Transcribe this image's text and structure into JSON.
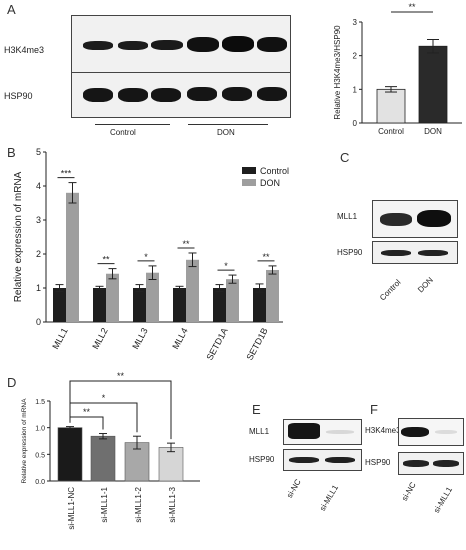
{
  "panel_letters": {
    "a": "A",
    "b": "B",
    "c": "C",
    "d": "D",
    "e": "E",
    "f": "F"
  },
  "blot_a": {
    "protein_top": "H3K4me3",
    "protein_bottom": "HSP90",
    "group_control": "Control",
    "group_don": "DON"
  },
  "blot_c": {
    "protein_top": "MLL1",
    "protein_bottom": "HSP90",
    "lane_1": "Control",
    "lane_2": "DON"
  },
  "blot_e": {
    "protein_top": "MLL1",
    "protein_bottom": "HSP90",
    "lane_1": "si-NC",
    "lane_2": "si-MLL1"
  },
  "blot_f": {
    "protein_top": "H3K4me3",
    "protein_bottom": "HSP90",
    "lane_1": "si-NC",
    "lane_2": "si-MLL1"
  },
  "chart_data": [
    {
      "panel": "A",
      "type": "bar",
      "categories": [
        "Control",
        "DON"
      ],
      "values": [
        1.0,
        2.28
      ],
      "errors": [
        0.08,
        0.2
      ],
      "colors": [
        "#e2e2e2",
        "#2a2a2a"
      ],
      "ylabel": "Relative H3K4me3/HSP90",
      "ylim": [
        0,
        3
      ],
      "yticks": [
        "0",
        "1",
        "2",
        "3"
      ],
      "significance": [
        {
          "from": 0,
          "to": 1,
          "label": "**"
        }
      ]
    },
    {
      "panel": "B",
      "type": "bar",
      "categories": [
        "MLL1",
        "MLL2",
        "MLL3",
        "MLL4",
        "SETD1A",
        "SETD1B"
      ],
      "series": [
        {
          "name": "Control",
          "color": "#1e1e1e",
          "values": [
            1.0,
            1.0,
            1.0,
            1.0,
            1.0,
            1.0
          ],
          "errors": [
            0.1,
            0.05,
            0.1,
            0.05,
            0.1,
            0.12
          ]
        },
        {
          "name": "DON",
          "color": "#9e9e9e",
          "values": [
            3.8,
            1.42,
            1.45,
            1.83,
            1.26,
            1.53
          ],
          "errors": [
            0.3,
            0.15,
            0.2,
            0.2,
            0.12,
            0.12
          ]
        }
      ],
      "significance": [
        "***",
        "**",
        "*",
        "**",
        "*",
        "**"
      ],
      "ylabel": "Relative expression of mRNA",
      "ylim": [
        0,
        5
      ],
      "yticks": [
        "0",
        "1",
        "2",
        "3",
        "4",
        "5"
      ],
      "legend_position": "top-right"
    },
    {
      "panel": "D",
      "type": "bar",
      "categories": [
        "si-MLL1-NC",
        "si-MLL1-1",
        "si-MLL1-2",
        "si-MLL1-3"
      ],
      "values": [
        1.0,
        0.84,
        0.72,
        0.63
      ],
      "errors": [
        0.02,
        0.05,
        0.12,
        0.08
      ],
      "colors": [
        "#1a1a1a",
        "#6f6f6f",
        "#a8a8a8",
        "#d6d6d6"
      ],
      "ylabel": "Relative expression of mRNA",
      "ylim": [
        0,
        1.5
      ],
      "yticks": [
        "0.0",
        "0.5",
        "1.0",
        "1.5"
      ],
      "significance": [
        {
          "from": 0,
          "to": 1,
          "label": "**"
        },
        {
          "from": 0,
          "to": 2,
          "label": "*"
        },
        {
          "from": 0,
          "to": 3,
          "label": "**"
        }
      ]
    }
  ]
}
